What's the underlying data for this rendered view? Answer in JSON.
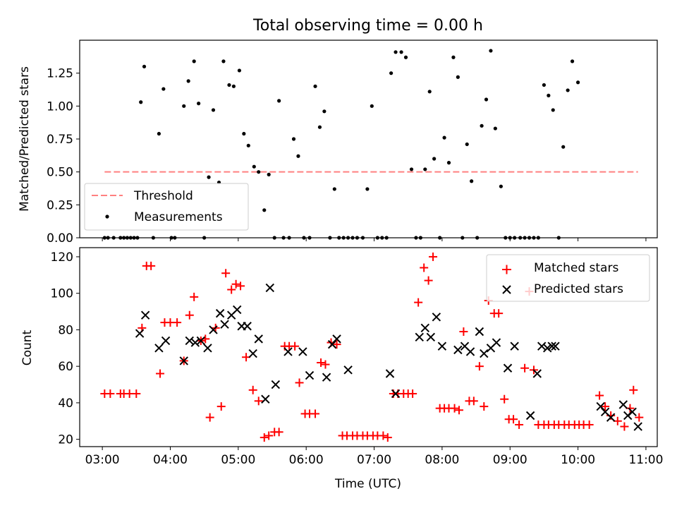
{
  "chart_data": [
    {
      "type": "scatter",
      "title": "Total observing time = 0.00 h",
      "ylabel": "Matched/Predicted stars",
      "xlabel": "",
      "xlim": [
        "02:40",
        "11:10"
      ],
      "ylim": [
        0,
        1.5
      ],
      "yticks": [
        0,
        0.25,
        0.5,
        0.75,
        1.0,
        1.25
      ],
      "ytick_labels": [
        "0.00",
        "0.25",
        "0.50",
        "0.75",
        "1.00",
        "1.25"
      ],
      "xticks": [
        "03:00",
        "04:00",
        "05:00",
        "06:00",
        "07:00",
        "08:00",
        "09:00",
        "10:00",
        "11:00"
      ],
      "xtick_labels": [],
      "legend_position": "bottom-left",
      "threshold": {
        "name": "Threshold",
        "value": 0.5,
        "x_range": [
          "03:02",
          "10:53"
        ],
        "color": "#ff8080"
      },
      "series": [
        {
          "name": "Measurements",
          "color": "#000000",
          "points": [
            [
              "03:02",
              0
            ],
            [
              "03:05",
              0
            ],
            [
              "03:10",
              0
            ],
            [
              "03:16",
              0
            ],
            [
              "03:19",
              0
            ],
            [
              "03:22",
              0
            ],
            [
              "03:25",
              0
            ],
            [
              "03:28",
              0
            ],
            [
              "03:31",
              0
            ],
            [
              "03:34",
              1.03
            ],
            [
              "03:37",
              1.3
            ],
            [
              "03:45",
              0
            ],
            [
              "03:50",
              0.79
            ],
            [
              "03:54",
              1.13
            ],
            [
              "04:01",
              0
            ],
            [
              "04:04",
              0
            ],
            [
              "04:12",
              1.0
            ],
            [
              "04:16",
              1.19
            ],
            [
              "04:21",
              1.34
            ],
            [
              "04:25",
              1.02
            ],
            [
              "04:30",
              0
            ],
            [
              "04:34",
              0.46
            ],
            [
              "04:38",
              0.97
            ],
            [
              "04:43",
              0.42
            ],
            [
              "04:47",
              1.34
            ],
            [
              "04:52",
              1.16
            ],
            [
              "04:56",
              1.15
            ],
            [
              "05:01",
              1.27
            ],
            [
              "05:05",
              0.79
            ],
            [
              "05:09",
              0.7
            ],
            [
              "05:14",
              0.54
            ],
            [
              "05:18",
              0.5
            ],
            [
              "05:23",
              0.21
            ],
            [
              "05:27",
              0.48
            ],
            [
              "05:32",
              0
            ],
            [
              "05:36",
              1.04
            ],
            [
              "05:40",
              0
            ],
            [
              "05:45",
              0
            ],
            [
              "05:49",
              0.75
            ],
            [
              "05:53",
              0.62
            ],
            [
              "05:58",
              0
            ],
            [
              "06:03",
              0
            ],
            [
              "06:08",
              1.15
            ],
            [
              "06:12",
              0.84
            ],
            [
              "06:16",
              0.96
            ],
            [
              "06:21",
              0
            ],
            [
              "06:25",
              0.37
            ],
            [
              "06:29",
              0
            ],
            [
              "06:33",
              0
            ],
            [
              "06:37",
              0
            ],
            [
              "06:41",
              0
            ],
            [
              "06:45",
              0
            ],
            [
              "06:50",
              0
            ],
            [
              "06:54",
              0.37
            ],
            [
              "06:58",
              1.0
            ],
            [
              "07:03",
              0
            ],
            [
              "07:07",
              0
            ],
            [
              "07:11",
              0
            ],
            [
              "07:15",
              1.25
            ],
            [
              "07:19",
              1.41
            ],
            [
              "07:24",
              1.41
            ],
            [
              "07:28",
              1.37
            ],
            [
              "07:33",
              0.52
            ],
            [
              "07:37",
              0
            ],
            [
              "07:41",
              0
            ],
            [
              "07:45",
              0.52
            ],
            [
              "07:49",
              1.11
            ],
            [
              "07:53",
              0.6
            ],
            [
              "07:58",
              0
            ],
            [
              "08:02",
              0.76
            ],
            [
              "08:06",
              0.57
            ],
            [
              "08:10",
              1.37
            ],
            [
              "08:14",
              1.22
            ],
            [
              "08:18",
              0
            ],
            [
              "08:22",
              0.71
            ],
            [
              "08:26",
              0.43
            ],
            [
              "08:31",
              0
            ],
            [
              "08:35",
              0.85
            ],
            [
              "08:39",
              1.05
            ],
            [
              "08:43",
              1.42
            ],
            [
              "08:47",
              0.83
            ],
            [
              "08:52",
              0.39
            ],
            [
              "08:56",
              0
            ],
            [
              "09:00",
              0
            ],
            [
              "09:04",
              0
            ],
            [
              "09:09",
              0
            ],
            [
              "09:13",
              0
            ],
            [
              "09:17",
              0
            ],
            [
              "09:21",
              0
            ],
            [
              "09:25",
              0
            ],
            [
              "09:30",
              1.16
            ],
            [
              "09:34",
              1.08
            ],
            [
              "09:38",
              0.97
            ],
            [
              "09:43",
              0
            ],
            [
              "09:47",
              0.69
            ],
            [
              "09:51",
              1.12
            ],
            [
              "09:55",
              1.34
            ],
            [
              "10:00",
              1.18
            ]
          ]
        }
      ]
    },
    {
      "type": "scatter",
      "title": "",
      "ylabel": "Count",
      "xlabel": "Time (UTC)",
      "xlim": [
        "02:40",
        "11:10"
      ],
      "ylim": [
        16,
        125
      ],
      "yticks": [
        20,
        40,
        60,
        80,
        100,
        120
      ],
      "ytick_labels": [
        "20",
        "40",
        "60",
        "80",
        "100",
        "120"
      ],
      "xticks": [
        "03:00",
        "04:00",
        "05:00",
        "06:00",
        "07:00",
        "08:00",
        "09:00",
        "10:00",
        "11:00"
      ],
      "xtick_labels": [
        "03:00",
        "04:00",
        "05:00",
        "06:00",
        "07:00",
        "08:00",
        "09:00",
        "10:00",
        "11:00"
      ],
      "legend_position": "top-right",
      "series": [
        {
          "name": "Matched stars",
          "marker": "+",
          "color": "#ff0000",
          "points": [
            [
              "03:02",
              45
            ],
            [
              "03:07",
              45
            ],
            [
              "03:16",
              45
            ],
            [
              "03:19",
              45
            ],
            [
              "03:24",
              45
            ],
            [
              "03:30",
              45
            ],
            [
              "03:35",
              81
            ],
            [
              "03:39",
              115
            ],
            [
              "03:43",
              115
            ],
            [
              "03:51",
              56
            ],
            [
              "03:55",
              84
            ],
            [
              "04:00",
              84
            ],
            [
              "04:06",
              84
            ],
            [
              "04:12",
              63
            ],
            [
              "04:17",
              88
            ],
            [
              "04:21",
              98
            ],
            [
              "04:27",
              74
            ],
            [
              "04:31",
              75
            ],
            [
              "04:35",
              32
            ],
            [
              "04:40",
              81
            ],
            [
              "04:45",
              38
            ],
            [
              "04:49",
              111
            ],
            [
              "04:54",
              102
            ],
            [
              "04:58",
              105
            ],
            [
              "05:02",
              104
            ],
            [
              "05:07",
              65
            ],
            [
              "05:13",
              47
            ],
            [
              "05:18",
              41
            ],
            [
              "05:23",
              21
            ],
            [
              "05:27",
              22
            ],
            [
              "05:32",
              24
            ],
            [
              "05:36",
              24
            ],
            [
              "05:41",
              71
            ],
            [
              "05:45",
              71
            ],
            [
              "05:50",
              71
            ],
            [
              "05:54",
              51
            ],
            [
              "05:59",
              34
            ],
            [
              "06:03",
              34
            ],
            [
              "06:08",
              34
            ],
            [
              "06:13",
              62
            ],
            [
              "06:17",
              61
            ],
            [
              "06:22",
              73
            ],
            [
              "06:27",
              72
            ],
            [
              "06:32",
              22
            ],
            [
              "06:36",
              22
            ],
            [
              "06:41",
              22
            ],
            [
              "06:45",
              22
            ],
            [
              "06:50",
              22
            ],
            [
              "06:54",
              22
            ],
            [
              "06:59",
              22
            ],
            [
              "07:03",
              22
            ],
            [
              "07:08",
              22
            ],
            [
              "07:12",
              21
            ],
            [
              "07:17",
              45
            ],
            [
              "07:21",
              45
            ],
            [
              "07:26",
              45
            ],
            [
              "07:30",
              45
            ],
            [
              "07:34",
              45
            ],
            [
              "07:39",
              95
            ],
            [
              "07:44",
              114
            ],
            [
              "07:48",
              107
            ],
            [
              "07:52",
              120
            ],
            [
              "07:58",
              37
            ],
            [
              "08:02",
              37
            ],
            [
              "08:06",
              37
            ],
            [
              "08:11",
              37
            ],
            [
              "08:15",
              36
            ],
            [
              "08:19",
              79
            ],
            [
              "08:24",
              41
            ],
            [
              "08:28",
              41
            ],
            [
              "08:33",
              60
            ],
            [
              "08:37",
              38
            ],
            [
              "08:41",
              96
            ],
            [
              "08:46",
              89
            ],
            [
              "08:50",
              89
            ],
            [
              "08:55",
              42
            ],
            [
              "08:59",
              31
            ],
            [
              "09:03",
              31
            ],
            [
              "09:08",
              28
            ],
            [
              "09:13",
              59
            ],
            [
              "09:17",
              101
            ],
            [
              "09:21",
              58
            ],
            [
              "09:25",
              28
            ],
            [
              "09:30",
              28
            ],
            [
              "09:34",
              28
            ],
            [
              "09:39",
              28
            ],
            [
              "09:43",
              28
            ],
            [
              "09:48",
              28
            ],
            [
              "09:52",
              28
            ],
            [
              "09:57",
              28
            ],
            [
              "10:01",
              28
            ],
            [
              "10:05",
              28
            ],
            [
              "10:10",
              28
            ],
            [
              "10:19",
              44
            ],
            [
              "10:24",
              38
            ],
            [
              "10:29",
              33
            ],
            [
              "10:35",
              30
            ],
            [
              "10:41",
              27
            ],
            [
              "10:46",
              37
            ],
            [
              "10:49",
              47
            ],
            [
              "10:54",
              32
            ]
          ]
        },
        {
          "name": "Predicted stars",
          "marker": "x",
          "color": "#000000",
          "points": [
            [
              "03:33",
              78
            ],
            [
              "03:38",
              88
            ],
            [
              "03:50",
              70
            ],
            [
              "03:56",
              74
            ],
            [
              "04:12",
              63
            ],
            [
              "04:17",
              74
            ],
            [
              "04:22",
              73
            ],
            [
              "04:27",
              74
            ],
            [
              "04:33",
              70
            ],
            [
              "04:38",
              80
            ],
            [
              "04:44",
              89
            ],
            [
              "04:48",
              83
            ],
            [
              "04:54",
              88
            ],
            [
              "04:59",
              91
            ],
            [
              "05:03",
              82
            ],
            [
              "05:08",
              82
            ],
            [
              "05:13",
              67
            ],
            [
              "05:18",
              75
            ],
            [
              "05:24",
              42
            ],
            [
              "05:28",
              103
            ],
            [
              "05:33",
              50
            ],
            [
              "05:44",
              68
            ],
            [
              "05:57",
              68
            ],
            [
              "06:03",
              55
            ],
            [
              "06:18",
              54
            ],
            [
              "06:23",
              72
            ],
            [
              "06:27",
              75
            ],
            [
              "06:37",
              58
            ],
            [
              "07:14",
              56
            ],
            [
              "07:19",
              45
            ],
            [
              "07:40",
              76
            ],
            [
              "07:45",
              81
            ],
            [
              "07:50",
              76
            ],
            [
              "07:55",
              87
            ],
            [
              "08:00",
              71
            ],
            [
              "08:14",
              69
            ],
            [
              "08:20",
              71
            ],
            [
              "08:25",
              68
            ],
            [
              "08:33",
              79
            ],
            [
              "08:37",
              67
            ],
            [
              "08:43",
              70
            ],
            [
              "08:48",
              73
            ],
            [
              "08:58",
              59
            ],
            [
              "09:04",
              71
            ],
            [
              "09:18",
              33
            ],
            [
              "09:24",
              56
            ],
            [
              "09:28",
              71
            ],
            [
              "09:33",
              70
            ],
            [
              "09:37",
              71
            ],
            [
              "09:40",
              71
            ],
            [
              "10:20",
              38
            ],
            [
              "10:24",
              35
            ],
            [
              "10:29",
              32
            ],
            [
              "10:40",
              39
            ],
            [
              "10:44",
              33
            ],
            [
              "10:48",
              35
            ],
            [
              "10:53",
              27
            ]
          ]
        }
      ]
    }
  ]
}
